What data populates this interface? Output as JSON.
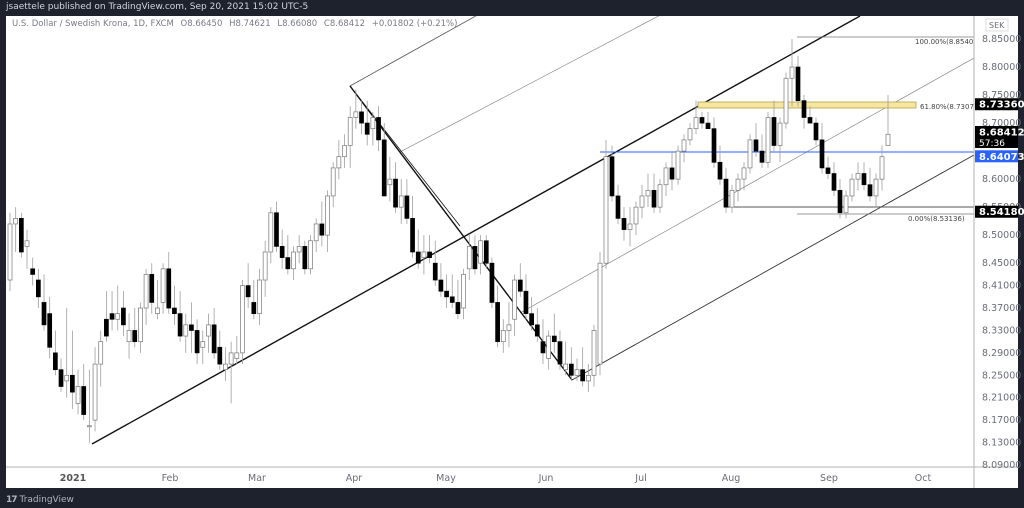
{
  "header": {
    "publisher": "jsaettele published on TradingView.com, Sep 20, 2021 15:02 UTC-5"
  },
  "legend": {
    "symbol": "U.S. Dollar / Swedish Krona, 1D, FXCM",
    "open": "O8.66450",
    "high": "H8.74621",
    "low": "L8.66080",
    "close": "C8.68412",
    "change": "+0.01802 (+0.21%)"
  },
  "price_axis": {
    "currency": "SEK",
    "ticks": [
      "8.85000",
      "8.80000",
      "8.75000",
      "8.70000",
      "8.60000",
      "8.55000",
      "8.50000",
      "8.45000",
      "8.41000",
      "8.37000",
      "8.33000",
      "8.29000",
      "8.25000",
      "8.21000",
      "8.17000",
      "8.13000",
      "8.09000"
    ],
    "labels": [
      {
        "value": "8.73360",
        "bg": "#000000",
        "color": "#ffffff"
      },
      {
        "value": "8.68412",
        "sub": "57:36",
        "bg": "#000000",
        "color": "#ffffff"
      },
      {
        "value": "8.64073",
        "bg": "#2962ff",
        "color": "#ffffff"
      },
      {
        "value": "8.54180",
        "bg": "#000000",
        "color": "#ffffff"
      }
    ]
  },
  "time_axis": {
    "labels": [
      "2021",
      "Feb",
      "Mar",
      "Apr",
      "May",
      "Jun",
      "Jul",
      "Aug",
      "Sep",
      "Oct"
    ]
  },
  "annotations": {
    "fib_100": "100.00%(8.85406)",
    "fib_618": "61.80%(8.73079)",
    "fib_0": "0.00%(8.53136)"
  },
  "footer": {
    "brand": "TradingView",
    "brand_mark": "17"
  },
  "colors": {
    "frame": "#1e222d",
    "up_candle": "#ffffff",
    "down_candle": "#000000",
    "wick": "#9e9e9e",
    "blue_line": "#2962ff",
    "zone_fill": "#f5e6a0",
    "zone_border": "#b5a24a"
  },
  "chart_data": {
    "type": "candlestick",
    "title": "U.S. Dollar / Swedish Krona, 1D, FXCM",
    "ylabel": "SEK",
    "ylim": [
      8.09,
      8.87
    ],
    "x_labels": [
      "2021",
      "Feb",
      "Mar",
      "Apr",
      "May",
      "Jun",
      "Jul",
      "Aug",
      "Sep",
      "Oct"
    ],
    "last": {
      "open": 8.6645,
      "high": 8.74621,
      "low": 8.6608,
      "close": 8.68412,
      "change": 0.01802,
      "change_pct": 0.21
    },
    "horizontal_levels": [
      8.7336,
      8.64073,
      8.5418
    ],
    "fib_levels": [
      {
        "pct": "100.00%",
        "value": 8.85406
      },
      {
        "pct": "61.80%",
        "value": 8.73079
      },
      {
        "pct": "0.00%",
        "value": 8.53136
      }
    ],
    "candles_ohlc_approx": [
      [
        10,
        8.42,
        8.54,
        8.4,
        8.52
      ],
      [
        16,
        8.52,
        8.55,
        8.47,
        8.53
      ],
      [
        22,
        8.53,
        8.54,
        8.46,
        8.47
      ],
      [
        28,
        8.48,
        8.51,
        8.44,
        8.49
      ],
      [
        34,
        8.44,
        8.46,
        8.41,
        8.43
      ],
      [
        40,
        8.42,
        8.44,
        8.37,
        8.39
      ],
      [
        46,
        8.38,
        8.43,
        8.33,
        8.34
      ],
      [
        52,
        8.36,
        8.39,
        8.28,
        8.3
      ],
      [
        58,
        8.29,
        8.33,
        8.25,
        8.26
      ],
      [
        64,
        8.26,
        8.28,
        8.22,
        8.23
      ],
      [
        70,
        8.24,
        8.37,
        8.21,
        8.25
      ],
      [
        76,
        8.25,
        8.33,
        8.19,
        8.22
      ],
      [
        82,
        8.2,
        8.26,
        8.18,
        8.23
      ],
      [
        88,
        8.23,
        8.27,
        8.17,
        8.18
      ],
      [
        94,
        8.16,
        8.26,
        8.13,
        8.16
      ],
      [
        100,
        8.17,
        8.3,
        8.15,
        8.27
      ],
      [
        106,
        8.27,
        8.33,
        8.23,
        8.31
      ],
      [
        112,
        8.35,
        8.4,
        8.31,
        8.32
      ],
      [
        118,
        8.36,
        8.4,
        8.33,
        8.35
      ],
      [
        124,
        8.35,
        8.41,
        8.33,
        8.36
      ],
      [
        130,
        8.37,
        8.4,
        8.32,
        8.34
      ],
      [
        136,
        8.31,
        8.36,
        8.28,
        8.33
      ],
      [
        142,
        8.33,
        8.37,
        8.3,
        8.31
      ],
      [
        148,
        8.31,
        8.38,
        8.29,
        8.37
      ],
      [
        154,
        8.37,
        8.44,
        8.34,
        8.43
      ],
      [
        160,
        8.43,
        8.45,
        8.36,
        8.38
      ],
      [
        166,
        8.36,
        8.42,
        8.35,
        8.37
      ],
      [
        172,
        8.38,
        8.45,
        8.36,
        8.44
      ],
      [
        178,
        8.44,
        8.47,
        8.36,
        8.37
      ],
      [
        184,
        8.37,
        8.41,
        8.34,
        8.36
      ],
      [
        190,
        8.36,
        8.4,
        8.31,
        8.32
      ],
      [
        196,
        8.32,
        8.36,
        8.29,
        8.34
      ],
      [
        202,
        8.34,
        8.38,
        8.29,
        8.33
      ],
      [
        208,
        8.33,
        8.35,
        8.27,
        8.29
      ],
      [
        214,
        8.3,
        8.33,
        8.27,
        8.31
      ],
      [
        220,
        8.32,
        8.36,
        8.29,
        8.34
      ],
      [
        226,
        8.34,
        8.37,
        8.28,
        8.29
      ],
      [
        232,
        8.3,
        8.33,
        8.26,
        8.27
      ],
      [
        238,
        8.26,
        8.3,
        8.24,
        8.27
      ],
      [
        244,
        8.27,
        8.31,
        8.2,
        8.29
      ],
      [
        250,
        8.28,
        8.32,
        8.27,
        8.29
      ],
      [
        256,
        8.29,
        8.42,
        8.27,
        8.41
      ],
      [
        262,
        8.41,
        8.45,
        8.37,
        8.39
      ],
      [
        268,
        8.38,
        8.42,
        8.35,
        8.36
      ],
      [
        274,
        8.36,
        8.44,
        8.34,
        8.42
      ],
      [
        280,
        8.42,
        8.49,
        8.39,
        8.47
      ],
      [
        286,
        8.47,
        8.55,
        8.45,
        8.54
      ],
      [
        292,
        8.54,
        8.56,
        8.47,
        8.48
      ],
      [
        298,
        8.48,
        8.51,
        8.44,
        8.46
      ],
      [
        304,
        8.46,
        8.5,
        8.43,
        8.44
      ],
      [
        310,
        8.44,
        8.48,
        8.42,
        8.47
      ],
      [
        316,
        8.47,
        8.5,
        8.45,
        8.48
      ],
      [
        322,
        8.48,
        8.49,
        8.43,
        8.44
      ],
      [
        328,
        8.44,
        8.5,
        8.43,
        8.49
      ],
      [
        334,
        8.49,
        8.53,
        8.47,
        8.52
      ],
      [
        340,
        8.52,
        8.56,
        8.48,
        8.5
      ],
      [
        346,
        8.5,
        8.58,
        8.47,
        8.57
      ],
      [
        352,
        8.57,
        8.63,
        8.55,
        8.62
      ],
      [
        358,
        8.62,
        8.67,
        8.6,
        8.64
      ],
      [
        364,
        8.64,
        8.68,
        8.62,
        8.66
      ],
      [
        370,
        8.66,
        8.73,
        8.62,
        8.71
      ],
      [
        376,
        8.71,
        8.76,
        8.69,
        8.72
      ],
      [
        382,
        8.72,
        8.74,
        8.68,
        8.7
      ],
      [
        388,
        8.7,
        8.74,
        8.66,
        8.68
      ],
      [
        394,
        8.69,
        8.72,
        8.66,
        8.71
      ],
      [
        400,
        8.71,
        8.73,
        8.65,
        8.67
      ],
      [
        406,
        8.67,
        8.7,
        8.62,
        8.57
      ],
      [
        412,
        8.59,
        8.64,
        8.56,
        8.6
      ],
      [
        418,
        8.6,
        8.63,
        8.54,
        8.55
      ],
      [
        424,
        8.55,
        8.6,
        8.52,
        8.57
      ],
      [
        430,
        8.57,
        8.6,
        8.52,
        8.53
      ],
      [
        436,
        8.53,
        8.57,
        8.46,
        8.47
      ],
      [
        442,
        8.47,
        8.51,
        8.44,
        8.45
      ],
      [
        448,
        8.46,
        8.5,
        8.43,
        8.47
      ],
      [
        454,
        8.47,
        8.5,
        8.45,
        8.46
      ],
      [
        460,
        8.45,
        8.49,
        8.41,
        8.42
      ],
      [
        466,
        8.42,
        8.45,
        8.39,
        8.4
      ],
      [
        472,
        8.4,
        8.43,
        8.37,
        8.39
      ],
      [
        478,
        8.39,
        8.43,
        8.37,
        8.38
      ],
      [
        484,
        8.38,
        8.42,
        8.35,
        8.36
      ],
      [
        490,
        8.37,
        8.44,
        8.35,
        8.43
      ],
      [
        496,
        8.44,
        8.5,
        8.42,
        8.48
      ],
      [
        502,
        8.48,
        8.5,
        8.43,
        8.44
      ],
      [
        508,
        8.45,
        8.5,
        8.43,
        8.49
      ],
      [
        514,
        8.49,
        8.5,
        8.44,
        8.45
      ],
      [
        520,
        8.45,
        8.46,
        8.37,
        8.38
      ],
      [
        526,
        8.38,
        8.41,
        8.3,
        8.31
      ],
      [
        532,
        8.31,
        8.35,
        8.29,
        8.33
      ],
      [
        538,
        8.33,
        8.38,
        8.3,
        8.34
      ],
      [
        544,
        8.35,
        8.43,
        8.32,
        8.42
      ],
      [
        550,
        8.42,
        8.45,
        8.39,
        8.4
      ],
      [
        556,
        8.4,
        8.43,
        8.35,
        8.36
      ],
      [
        562,
        8.36,
        8.39,
        8.33,
        8.34
      ],
      [
        568,
        8.34,
        8.37,
        8.31,
        8.32
      ],
      [
        574,
        8.31,
        8.35,
        8.27,
        8.29
      ],
      [
        580,
        8.28,
        8.33,
        8.26,
        8.32
      ],
      [
        586,
        8.32,
        8.36,
        8.29,
        8.31
      ],
      [
        592,
        8.31,
        8.33,
        8.26,
        8.27
      ],
      [
        598,
        8.26,
        8.31,
        8.25,
        8.27
      ],
      [
        604,
        8.27,
        8.3,
        8.24,
        8.25
      ],
      [
        610,
        8.25,
        8.28,
        8.24,
        8.26
      ],
      [
        616,
        8.26,
        8.3,
        8.23,
        8.24
      ],
      [
        622,
        8.24,
        8.27,
        8.22,
        8.25
      ],
      [
        628,
        8.25,
        8.34,
        8.23,
        8.33
      ]
    ]
  }
}
